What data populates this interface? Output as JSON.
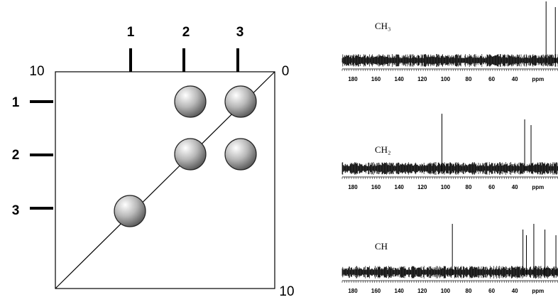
{
  "plot": {
    "corner_labels": {
      "top_left": "10",
      "top_right": "0",
      "bottom_right": "10"
    },
    "top_labels": [
      "1",
      "2",
      "3"
    ],
    "left_labels": [
      "1",
      "2",
      "3"
    ]
  },
  "spectrum_axis_labels": [
    "180",
    "160",
    "140",
    "120",
    "100",
    "80",
    "60",
    "40",
    "ppm"
  ],
  "spectra": [
    {
      "label": "CH₃",
      "peaks": [
        13,
        5
      ]
    },
    {
      "label": "CH₂",
      "peaks": [
        103,
        31.5,
        26
      ]
    },
    {
      "label": "CH",
      "peaks": [
        94,
        33,
        30,
        23.6,
        14,
        4.5
      ]
    }
  ]
}
